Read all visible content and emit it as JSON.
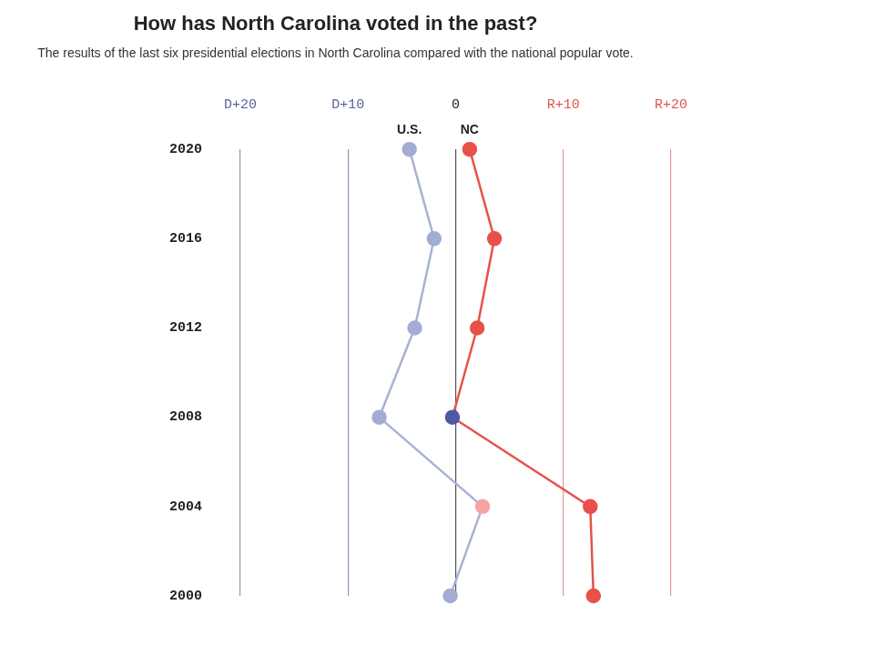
{
  "chart_data": {
    "type": "line",
    "orientation": "horizontal",
    "title": "How has North Carolina voted in the past?",
    "subtitle": "The results of the last six presidential elections in North Carolina compared with the national popular vote.",
    "categories": [
      "2020",
      "2016",
      "2012",
      "2008",
      "2004",
      "2000"
    ],
    "series": [
      {
        "name": "U.S.",
        "color": "#a9b2d6",
        "colors": [
          "#a3acd3",
          "#a3acd3",
          "#a3acd3",
          "#a3acd3",
          "#f2a6a4",
          "#a3acd3"
        ],
        "values": [
          -4.3,
          -2.0,
          -3.8,
          -7.1,
          2.5,
          -0.5
        ]
      },
      {
        "name": "NC",
        "color": "#e5534b",
        "colors": [
          "#e8504a",
          "#e8504a",
          "#e8504a",
          "#4a5aa6",
          "#e8504a",
          "#e8504a"
        ],
        "values": [
          1.3,
          3.6,
          2.0,
          -0.3,
          12.5,
          12.8
        ]
      }
    ],
    "xlim": [
      -20,
      20
    ],
    "xticks": [
      {
        "value": -20,
        "label": "D+20"
      },
      {
        "value": -10,
        "label": "D+10"
      },
      0,
      {
        "value": 10,
        "label": "R+10"
      },
      {
        "value": 20,
        "label": "R+20"
      }
    ],
    "grid": true,
    "marker": "circle"
  }
}
